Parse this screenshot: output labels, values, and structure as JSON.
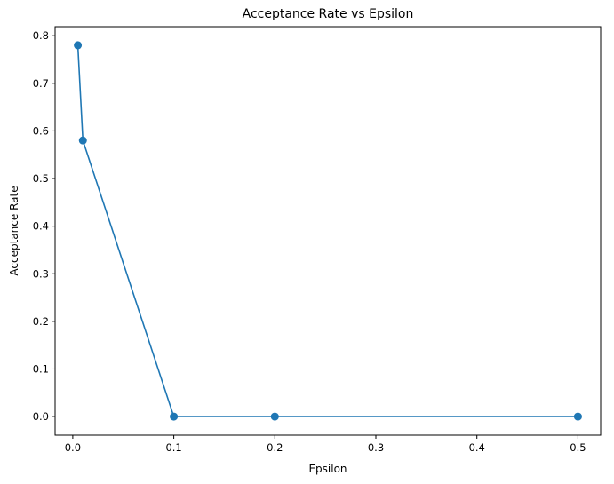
{
  "chart_data": {
    "type": "line",
    "title": "Acceptance Rate vs Epsilon",
    "xlabel": "Epsilon",
    "ylabel": "Acceptance Rate",
    "xlim": [
      -0.0175,
      0.5225
    ],
    "ylim": [
      -0.039,
      0.819
    ],
    "xticks": [
      0.0,
      0.1,
      0.2,
      0.3,
      0.4,
      0.5
    ],
    "xtick_labels": [
      "0.0",
      "0.1",
      "0.2",
      "0.3",
      "0.4",
      "0.5"
    ],
    "yticks": [
      0.0,
      0.1,
      0.2,
      0.3,
      0.4,
      0.5,
      0.6,
      0.7,
      0.8
    ],
    "ytick_labels": [
      "0.0",
      "0.1",
      "0.2",
      "0.3",
      "0.4",
      "0.5",
      "0.6",
      "0.7",
      "0.8"
    ],
    "grid": false,
    "legend": "none",
    "series": [
      {
        "color": "#1f77b4",
        "marker": "circle",
        "x": [
          0.005,
          0.01,
          0.1,
          0.2,
          0.5
        ],
        "y": [
          0.78,
          0.58,
          0.0,
          0.0,
          0.0
        ]
      }
    ]
  }
}
